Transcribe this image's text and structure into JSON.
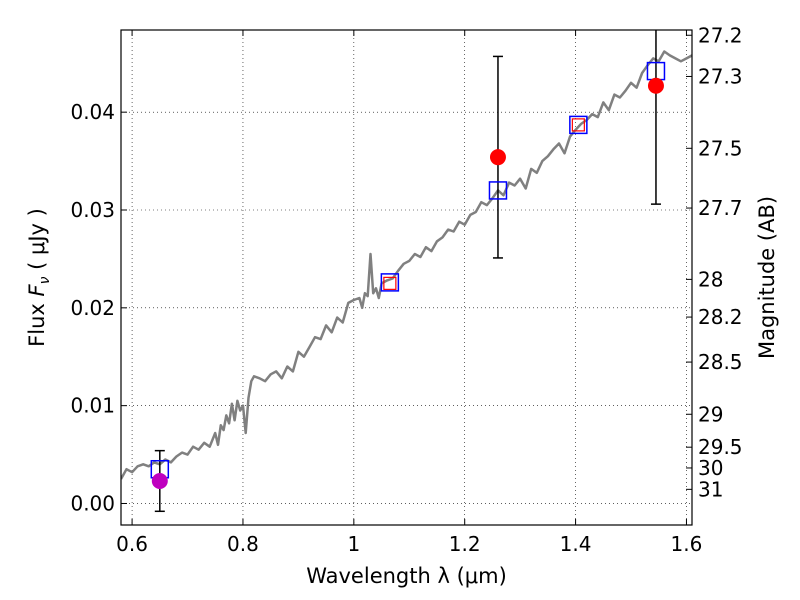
{
  "chart_data": {
    "type": "line",
    "xlabel": "Wavelength  λ (μm)",
    "ylabel": "Flux  F_ν  ( μJy )",
    "ylabel_parts": {
      "prefix": "Flux  ",
      "symbol": "F",
      "subscript": "ν",
      "suffix": "  ( μJy )"
    },
    "y2label": "Magnitude (AB)",
    "xlim": [
      0.58,
      1.61
    ],
    "ylim": [
      -0.0022,
      0.0484
    ],
    "grid": true,
    "x_ticks": [
      0.6,
      0.8,
      1.0,
      1.2,
      1.4,
      1.6
    ],
    "x_tick_labels": [
      "0.6",
      "0.8",
      "1",
      "1.2",
      "1.4",
      "1.6"
    ],
    "y_ticks": [
      0.0,
      0.01,
      0.02,
      0.03,
      0.04
    ],
    "y_tick_labels": [
      "0.00",
      "0.01",
      "0.02",
      "0.03",
      "0.04"
    ],
    "y2_tick_values": [
      27.2,
      27.3,
      27.5,
      27.7,
      28,
      28.2,
      28.5,
      29,
      29.5,
      30,
      31
    ],
    "y2_tick_labels": [
      "27.2",
      "27.3",
      "27.5",
      "27.7",
      "28",
      "28.2",
      "28.5",
      "29",
      "29.5",
      "30",
      "31"
    ],
    "model_spectrum": {
      "color": "#808080",
      "x": [
        0.58,
        0.59,
        0.6,
        0.61,
        0.62,
        0.63,
        0.64,
        0.65,
        0.66,
        0.67,
        0.68,
        0.69,
        0.7,
        0.71,
        0.72,
        0.73,
        0.74,
        0.75,
        0.755,
        0.76,
        0.765,
        0.77,
        0.775,
        0.78,
        0.785,
        0.79,
        0.795,
        0.8,
        0.805,
        0.81,
        0.815,
        0.82,
        0.83,
        0.84,
        0.85,
        0.86,
        0.87,
        0.88,
        0.89,
        0.9,
        0.91,
        0.92,
        0.93,
        0.94,
        0.95,
        0.96,
        0.97,
        0.98,
        0.99,
        1.0,
        1.01,
        1.015,
        1.02,
        1.025,
        1.03,
        1.035,
        1.04,
        1.045,
        1.05,
        1.06,
        1.07,
        1.08,
        1.09,
        1.1,
        1.11,
        1.12,
        1.13,
        1.14,
        1.15,
        1.16,
        1.17,
        1.18,
        1.19,
        1.2,
        1.21,
        1.22,
        1.23,
        1.24,
        1.25,
        1.26,
        1.27,
        1.28,
        1.29,
        1.3,
        1.31,
        1.32,
        1.33,
        1.34,
        1.35,
        1.36,
        1.37,
        1.38,
        1.39,
        1.4,
        1.41,
        1.42,
        1.43,
        1.44,
        1.45,
        1.46,
        1.47,
        1.48,
        1.49,
        1.5,
        1.51,
        1.52,
        1.53,
        1.54,
        1.55,
        1.56,
        1.57,
        1.58,
        1.59,
        1.6,
        1.61
      ],
      "y": [
        0.0025,
        0.0035,
        0.0032,
        0.0038,
        0.004,
        0.0038,
        0.0042,
        0.004,
        0.0045,
        0.0042,
        0.0048,
        0.0052,
        0.005,
        0.0058,
        0.0055,
        0.0062,
        0.0058,
        0.0072,
        0.006,
        0.008,
        0.0075,
        0.009,
        0.0082,
        0.0102,
        0.0085,
        0.0105,
        0.0095,
        0.01,
        0.0072,
        0.0108,
        0.0125,
        0.013,
        0.0128,
        0.0125,
        0.0132,
        0.0135,
        0.0128,
        0.014,
        0.0135,
        0.0155,
        0.015,
        0.016,
        0.017,
        0.0168,
        0.0182,
        0.0175,
        0.019,
        0.0185,
        0.0205,
        0.0208,
        0.021,
        0.02,
        0.0215,
        0.0212,
        0.0255,
        0.0215,
        0.022,
        0.021,
        0.0225,
        0.0228,
        0.023,
        0.0238,
        0.0245,
        0.0248,
        0.0255,
        0.0252,
        0.0262,
        0.0258,
        0.0268,
        0.0272,
        0.028,
        0.0278,
        0.0288,
        0.0285,
        0.0295,
        0.0298,
        0.0308,
        0.0305,
        0.0312,
        0.032,
        0.0315,
        0.0328,
        0.0325,
        0.0332,
        0.0322,
        0.0342,
        0.0338,
        0.035,
        0.0355,
        0.0362,
        0.0368,
        0.0358,
        0.0375,
        0.0382,
        0.0388,
        0.0392,
        0.0398,
        0.0395,
        0.041,
        0.0402,
        0.0418,
        0.0415,
        0.0422,
        0.043,
        0.0425,
        0.044,
        0.0448,
        0.0455,
        0.0452,
        0.0462,
        0.0458,
        0.0455,
        0.0452,
        0.0455,
        0.0458
      ]
    },
    "model_photometry": {
      "marker": "open square",
      "color": "#0000ff",
      "x": [
        0.65,
        1.065,
        1.26,
        1.405,
        1.545
      ],
      "y": [
        0.0035,
        0.0226,
        0.032,
        0.0387,
        0.0442
      ]
    },
    "observed_photometry": {
      "marker": "filled circle",
      "x": [
        0.65,
        1.065,
        1.26,
        1.405,
        1.545
      ],
      "y": [
        0.0023,
        0.0225,
        0.0354,
        0.0387,
        0.0427
      ],
      "yerr": [
        0.0031,
        null,
        0.0103,
        null,
        0.0121
      ],
      "colors": [
        "#bf00bf",
        "#ff0000",
        "#ff0000",
        "#ff0000",
        "#ff0000"
      ],
      "style": [
        "circle",
        "open-square",
        "circle",
        "open-square",
        "circle"
      ]
    }
  }
}
